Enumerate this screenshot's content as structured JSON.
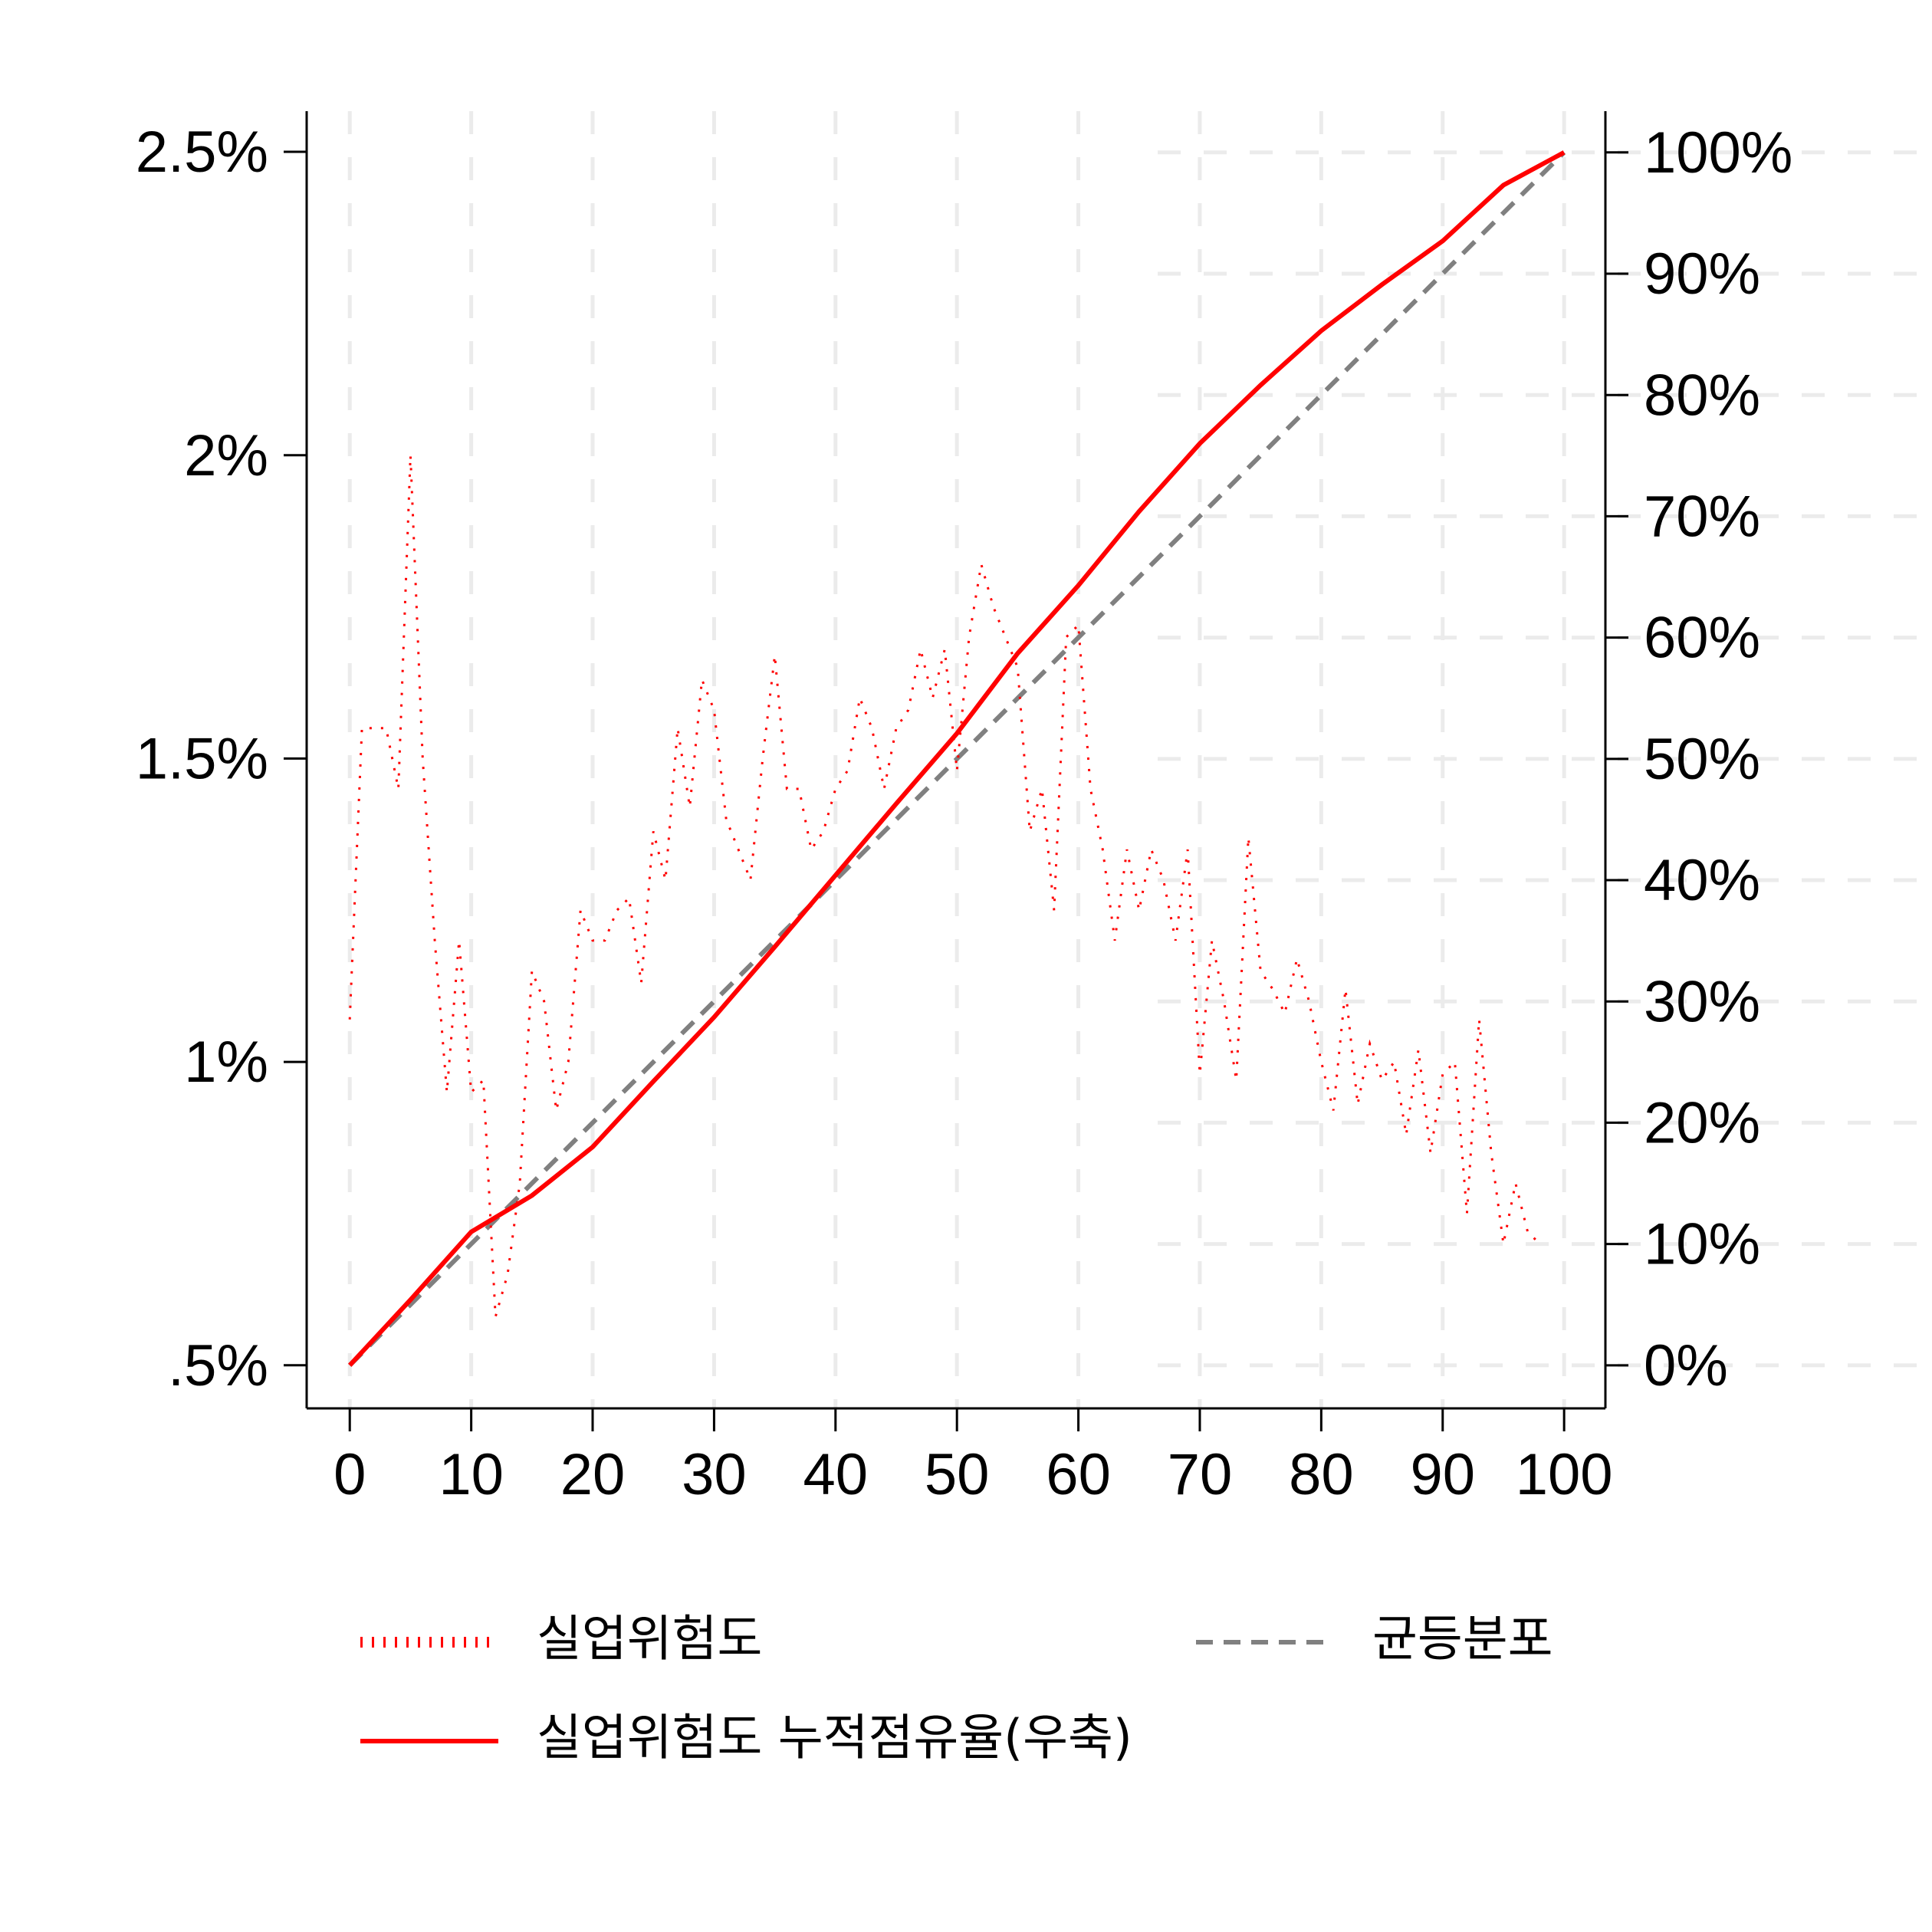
{
  "chart_data": {
    "type": "line",
    "xlim": [
      -3.55,
      103.4
    ],
    "xticks": [
      0,
      10,
      20,
      30,
      40,
      50,
      60,
      70,
      80,
      90,
      100
    ],
    "ylim": [
      0.429,
      2.567
    ],
    "yticks": [
      {
        "value": 0.5,
        "label": ".5%"
      },
      {
        "value": 1,
        "label": "1%"
      },
      {
        "value": 1.5,
        "label": "1.5%"
      },
      {
        "value": 2,
        "label": "2%"
      },
      {
        "value": 2.5,
        "label": "2.5%"
      }
    ],
    "y2lim": [
      -3.55,
      103.4
    ],
    "y2ticks": [
      {
        "value": 0,
        "label": "0%"
      },
      {
        "value": 10,
        "label": "10%"
      },
      {
        "value": 20,
        "label": "20%"
      },
      {
        "value": 30,
        "label": "30%"
      },
      {
        "value": 40,
        "label": "40%"
      },
      {
        "value": 50,
        "label": "50%"
      },
      {
        "value": 60,
        "label": "60%"
      },
      {
        "value": 70,
        "label": "70%"
      },
      {
        "value": 80,
        "label": "80%"
      },
      {
        "value": 90,
        "label": "90%"
      },
      {
        "value": 100,
        "label": "100%"
      }
    ],
    "grid": true,
    "series": [
      {
        "name": "실업위험도",
        "color": "#ff0000",
        "style": "dotted",
        "x": [
          0,
          1,
          2,
          3,
          4,
          5,
          6,
          7,
          8,
          9,
          10,
          11,
          12,
          13,
          14,
          15,
          16,
          17,
          18,
          19,
          20,
          21,
          22,
          23,
          24,
          25,
          26,
          27,
          28,
          29,
          30,
          31,
          32,
          33,
          34,
          35,
          36,
          37,
          38,
          39,
          40,
          41,
          42,
          43,
          44,
          45,
          46,
          47,
          48,
          49,
          50,
          51,
          52,
          53,
          54,
          55,
          56,
          57,
          58,
          59,
          60,
          61,
          62,
          63,
          64,
          65,
          66,
          67,
          68,
          69,
          70,
          71,
          72,
          73,
          74,
          75,
          76,
          77,
          78,
          79,
          80,
          81,
          82,
          83,
          84,
          85,
          86,
          87,
          88,
          89,
          90,
          91,
          92,
          93,
          94,
          95,
          96,
          97,
          98
        ],
        "values": [
          1.07,
          1.55,
          1.55,
          1.55,
          1.45,
          2.0,
          1.5,
          1.2,
          0.95,
          1.2,
          0.95,
          0.97,
          0.58,
          0.65,
          0.8,
          1.15,
          1.1,
          0.92,
          1.0,
          1.25,
          1.2,
          1.2,
          1.25,
          1.27,
          1.13,
          1.38,
          1.3,
          1.55,
          1.42,
          1.63,
          1.58,
          1.4,
          1.35,
          1.3,
          1.5,
          1.67,
          1.45,
          1.45,
          1.35,
          1.38,
          1.45,
          1.48,
          1.6,
          1.55,
          1.45,
          1.55,
          1.58,
          1.68,
          1.6,
          1.68,
          1.48,
          1.7,
          1.82,
          1.75,
          1.7,
          1.65,
          1.38,
          1.45,
          1.25,
          1.7,
          1.72,
          1.45,
          1.35,
          1.2,
          1.35,
          1.25,
          1.35,
          1.3,
          1.2,
          1.35,
          0.98,
          1.2,
          1.1,
          0.97,
          1.37,
          1.15,
          1.12,
          1.08,
          1.17,
          1.1,
          1.0,
          0.92,
          1.12,
          0.93,
          1.03,
          0.97,
          1.0,
          0.88,
          1.02,
          0.85,
          0.98,
          1.0,
          0.75,
          1.07,
          0.85,
          0.7,
          0.8,
          0.72,
          0.7
        ]
      },
      {
        "name": "실업위험도 누적점유율(우축)",
        "color": "#ff0000",
        "style": "solid",
        "axis": "y2",
        "x": [
          0,
          5,
          10,
          15,
          20,
          25,
          30,
          35,
          40,
          45,
          50,
          55,
          60,
          65,
          70,
          75,
          80,
          85,
          90,
          95,
          100
        ],
        "values": [
          0,
          5.4,
          11,
          14,
          18,
          23.4,
          28.7,
          34.5,
          40.4,
          46.3,
          52.1,
          58.7,
          64.3,
          70.4,
          76,
          80.8,
          85.3,
          89.1,
          92.7,
          97.3,
          100
        ]
      },
      {
        "name": "균등분포",
        "color": "#808080",
        "style": "dashed",
        "axis": "y2",
        "x": [
          0,
          100
        ],
        "values": [
          0,
          100
        ]
      }
    ]
  }
}
